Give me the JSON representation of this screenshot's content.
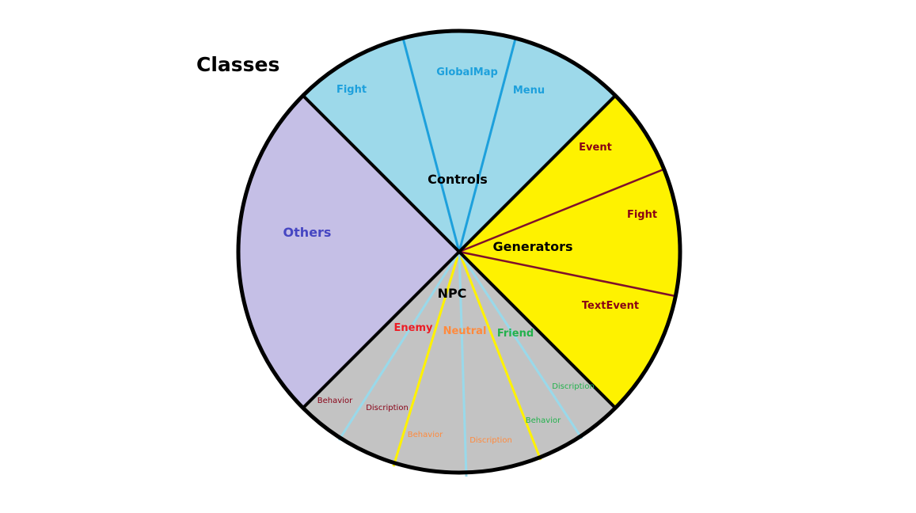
{
  "title": "Classes",
  "colors": {
    "controls_fill": "#9dd9ea",
    "controls_line": "#1da0dc",
    "generators_fill": "#fef200",
    "generators_line": "#7f0f2b",
    "others_fill": "#c5bfe6",
    "npc_fill": "#c3c3c3",
    "npc_yellow_line": "#fff200",
    "npc_blue_line": "#99d9ea",
    "outline": "#000000",
    "others_text": "#4646c2",
    "controls_sub_text": "#1da0dc",
    "generators_sub_text": "#880015",
    "enemy_text": "#ed1c24",
    "neutral_text": "#ff8a3d",
    "friend_text": "#22b14c"
  },
  "sections": {
    "controls": {
      "label": "Controls",
      "subs": [
        "Fight",
        "GlobalMap",
        "Menu"
      ]
    },
    "generators": {
      "label": "Generators",
      "subs": [
        "Event",
        "Fight",
        "TextEvent"
      ]
    },
    "others": {
      "label": "Others"
    },
    "npc": {
      "label": "NPC",
      "enemy": {
        "label": "Enemy",
        "behavior": "Behavior",
        "description": "Discription"
      },
      "neutral": {
        "label": "Neutral",
        "behavior": "Behavior",
        "description": "Discription"
      },
      "friend": {
        "label": "Friend",
        "behavior": "Behavior",
        "description": "Discription"
      }
    }
  }
}
